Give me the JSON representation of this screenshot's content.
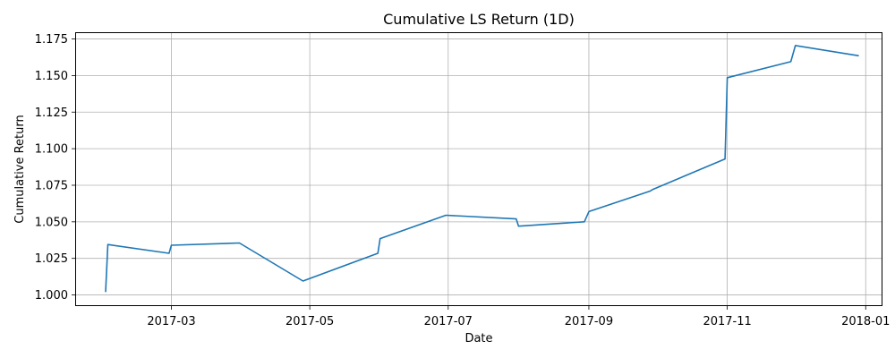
{
  "chart_data": {
    "type": "line",
    "title": "Cumulative LS Return (1D)",
    "xlabel": "Date",
    "ylabel": "Cumulative Return",
    "xlim": [
      "2017-01-18",
      "2018-01-08"
    ],
    "ylim": [
      0.993,
      1.179
    ],
    "x_ticks": [
      "2017-03-01",
      "2017-05-01",
      "2017-07-01",
      "2017-09-01",
      "2017-11-01",
      "2018-01-01"
    ],
    "x_tick_labels": [
      "2017-03",
      "2017-05",
      "2017-07",
      "2017-09",
      "2017-11",
      "2018-01"
    ],
    "y_ticks": [
      1.0,
      1.025,
      1.05,
      1.075,
      1.1,
      1.125,
      1.15,
      1.175
    ],
    "y_tick_labels": [
      "1.000",
      "1.025",
      "1.050",
      "1.075",
      "1.100",
      "1.125",
      "1.150",
      "1.175"
    ],
    "grid": true,
    "line_color": "#1f77b4",
    "series": [
      {
        "x": [
          "2017-01-31",
          "2017-02-01",
          "2017-02-28",
          "2017-03-01",
          "2017-03-31",
          "2017-04-28",
          "2017-05-31",
          "2017-06-01",
          "2017-06-30",
          "2017-07-31",
          "2017-08-01",
          "2017-08-30",
          "2017-09-01",
          "2017-09-28",
          "2017-09-29",
          "2017-10-31",
          "2017-11-01",
          "2017-11-29",
          "2017-12-01",
          "2017-12-29"
        ],
        "y": [
          1.002,
          1.0345,
          1.0285,
          1.034,
          1.0355,
          1.0095,
          1.0285,
          1.0385,
          1.0545,
          1.052,
          1.047,
          1.05,
          1.057,
          1.071,
          1.072,
          1.093,
          1.1485,
          1.1595,
          1.1705,
          1.1635
        ]
      }
    ]
  }
}
